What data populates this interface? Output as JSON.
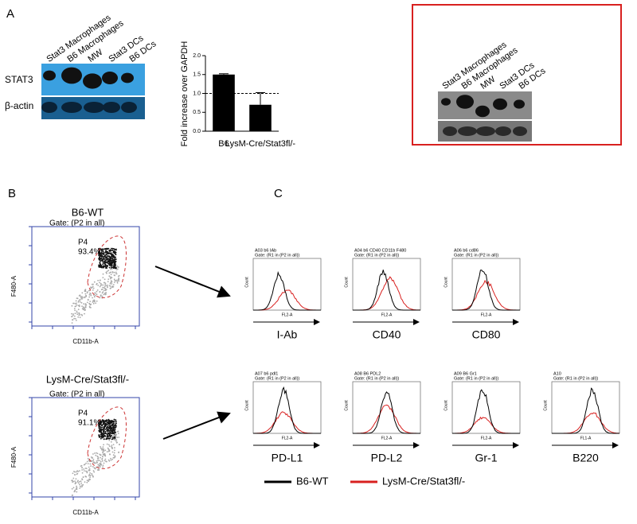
{
  "panel_a": {
    "label": "A",
    "blot_lanes": [
      "Stat3 Macrophages",
      "B6 Macrophages",
      "MW",
      "Stat3 DCs",
      "B6 DCs"
    ],
    "blot_rows": [
      "STAT3",
      "β-actin"
    ],
    "inset_lanes": [
      "Stat3 Macrophages",
      "B6 Macrophages",
      "MW",
      "Stat3 DCs",
      "B6 DCs"
    ]
  },
  "chart_data": {
    "type": "bar",
    "y_label": "Fold increase over GAPDH",
    "categories": [
      "B6",
      "LysM-Cre/Stat3fl/-"
    ],
    "values": [
      1.5,
      0.7
    ],
    "errors": [
      0.02,
      0.32
    ],
    "color": "#000000",
    "ylim": [
      0,
      2.0
    ],
    "yticks": [
      {
        "value": 0,
        "label": "0.0"
      },
      {
        "value": 0.5,
        "label": "0.5"
      },
      {
        "value": 1.0,
        "label": "1.0"
      },
      {
        "value": 1.5,
        "label": "1.5"
      },
      {
        "value": 2.0,
        "label": "2.0"
      }
    ],
    "reference_line": 1.0
  },
  "panel_b": {
    "label": "B",
    "plots": [
      {
        "title": "B6-WT",
        "gate": "Gate: (P2 in all)",
        "gate_name": "P4",
        "gate_percent": "93.4%",
        "x_label": "CD11b-A",
        "y_label": "F480-A"
      },
      {
        "title": "LysM-Cre/Stat3fl/-",
        "gate": "Gate: (P2 in all)",
        "gate_name": "P4",
        "gate_percent": "91.1%",
        "x_label": "CD11b-A",
        "y_label": "F480-A"
      }
    ]
  },
  "panel_c": {
    "label": "C",
    "histograms": [
      {
        "header": "A03 b6 IAb",
        "gate": "Gate: (R1 in (P2 in all))",
        "y_label": "Count",
        "x_label": "FL2-A",
        "marker": "I-Ab"
      },
      {
        "header": "A04 b6 CD40 CD11b F480",
        "gate": "Gate: (R1 in (P2 in all))",
        "y_label": "Count",
        "x_label": "FL2-A",
        "marker": "CD40"
      },
      {
        "header": "A06 b6 cd86",
        "gate": "Gate: (R1 in (P2 in all))",
        "y_label": "Count",
        "x_label": "FL2-A",
        "marker": "CD80"
      },
      {
        "header": "A07 b6 pdl1",
        "gate": "Gate: (R1 in (P2 in all))",
        "y_label": "Count",
        "x_label": "FL2-A",
        "marker": "PD-L1"
      },
      {
        "header": "A08 B6 PDL2",
        "gate": "Gate: (R1 in (P2 in all))",
        "y_label": "Count",
        "x_label": "FL2-A",
        "marker": "PD-L2"
      },
      {
        "header": "A09 B6 Gr1",
        "gate": "Gate: (R1 in (P2 in all))",
        "y_label": "Count",
        "x_label": "FL2-A",
        "marker": "Gr-1"
      },
      {
        "header": "A10",
        "gate": "Gate: (R1 in (P2 in all))",
        "y_label": "Count",
        "x_label": "FL1-A",
        "marker": "B220"
      }
    ],
    "legend": [
      "B6-WT",
      "LysM-Cre/Stat3fl/-"
    ]
  }
}
